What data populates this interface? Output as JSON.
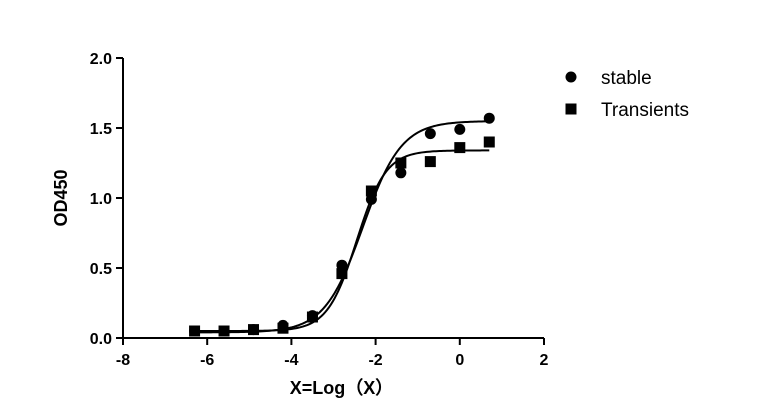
{
  "chart_data": {
    "type": "scatter",
    "title": "",
    "xlabel": "X=Log（X）",
    "ylabel": "OD450",
    "xlim": [
      -8,
      2
    ],
    "ylim": [
      0,
      2.0
    ],
    "xticks": [
      -8,
      -6,
      -4,
      -2,
      0,
      2
    ],
    "yticks": [
      0.0,
      0.5,
      1.0,
      1.5,
      2.0
    ],
    "xtick_labels": [
      "-8",
      "-6",
      "-4",
      "-2",
      "0",
      "2"
    ],
    "ytick_labels": [
      "0.0",
      "0.5",
      "1.0",
      "1.5",
      "2.0"
    ],
    "grid": false,
    "legend_position": "top-right",
    "series": [
      {
        "name": "stable",
        "marker": "circle",
        "color": "#000000",
        "x": [
          -6.3,
          -5.6,
          -4.9,
          -4.2,
          -3.5,
          -2.8,
          -2.1,
          -1.4,
          -0.7,
          0.0,
          0.7
        ],
        "y": [
          0.05,
          0.05,
          0.06,
          0.09,
          0.16,
          0.52,
          0.99,
          1.18,
          1.46,
          1.49,
          1.57
        ],
        "fit": {
          "bottom": 0.04,
          "top": 1.55,
          "logEC50": -2.3,
          "hill": 0.95
        }
      },
      {
        "name": "Transients",
        "marker": "square",
        "color": "#000000",
        "x": [
          -6.3,
          -5.6,
          -4.9,
          -4.2,
          -3.5,
          -2.8,
          -2.1,
          -1.4,
          -0.7,
          0.0,
          0.7
        ],
        "y": [
          0.05,
          0.05,
          0.06,
          0.07,
          0.15,
          0.46,
          1.05,
          1.25,
          1.26,
          1.36,
          1.4
        ],
        "fit": {
          "bottom": 0.05,
          "top": 1.34,
          "logEC50": -2.45,
          "hill": 1.25
        }
      }
    ]
  }
}
